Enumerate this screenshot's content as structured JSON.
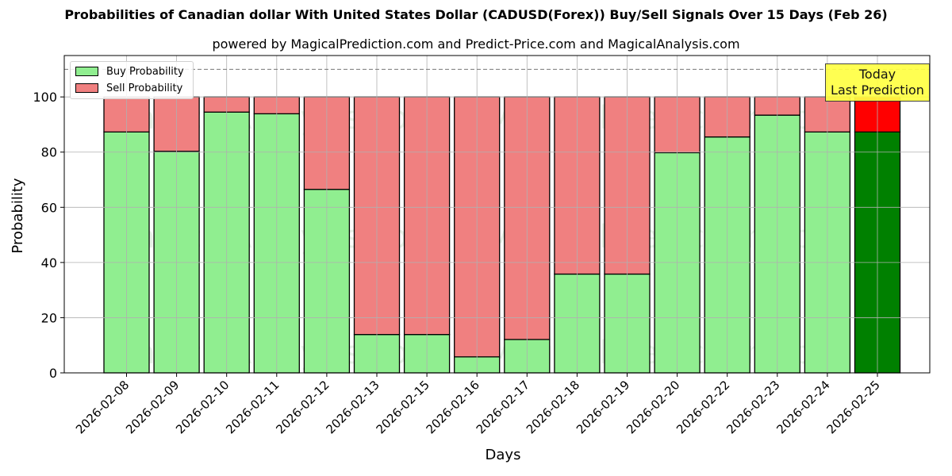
{
  "header": {
    "title": "Probabilities of Canadian dollar With United States Dollar (CADUSD(Forex)) Buy/Sell Signals Over 15 Days (Feb 26)",
    "subtitle": "powered by MagicalPrediction.com and Predict-Price.com and MagicalAnalysis.com"
  },
  "legend": {
    "buy_label": "Buy Probability",
    "sell_label": "Sell Probability"
  },
  "annotation": {
    "line1": "Today",
    "line2": "Last Prediction"
  },
  "watermarks": [
    "MagicalAnalysis.com",
    "MagicalPrediction.com"
  ],
  "colors": {
    "buy": "#90ee90",
    "sell": "#f08080",
    "buy_today": "#008000",
    "sell_today": "#ff0000",
    "annotation_bg": "#ffff44",
    "grid": "#b0b0b0"
  },
  "chart_data": {
    "type": "bar",
    "stacked": true,
    "title": "Probabilities of Canadian dollar With United States Dollar (CADUSD(Forex)) Buy/Sell Signals Over 15 Days (Feb 26)",
    "subtitle": "powered by MagicalPrediction.com and Predict-Price.com and MagicalAnalysis.com",
    "xlabel": "Days",
    "ylabel": "Probability",
    "ylim": [
      0,
      115
    ],
    "yticks": [
      0,
      20,
      40,
      60,
      80,
      100
    ],
    "grid": true,
    "legend_position": "upper left",
    "reference_line": {
      "y": 110,
      "style": "dashed"
    },
    "categories": [
      "2026-02-08",
      "2026-02-09",
      "2026-02-10",
      "2026-02-11",
      "2026-02-12",
      "2026-02-13",
      "2026-02-15",
      "2026-02-16",
      "2026-02-17",
      "2026-02-18",
      "2026-02-19",
      "2026-02-20",
      "2026-02-22",
      "2026-02-23",
      "2026-02-24",
      "2026-02-25"
    ],
    "series": [
      {
        "name": "Buy Probability",
        "values": [
          87.3,
          80.3,
          94.5,
          93.9,
          66.5,
          13.9,
          13.9,
          5.8,
          12.1,
          35.8,
          35.8,
          79.8,
          85.5,
          93.4,
          87.3,
          87.3
        ]
      },
      {
        "name": "Sell Probability",
        "values": [
          12.7,
          19.7,
          5.5,
          6.1,
          33.5,
          86.1,
          86.1,
          94.2,
          87.9,
          64.2,
          64.2,
          20.2,
          14.5,
          6.6,
          12.7,
          12.7
        ]
      }
    ],
    "highlight_last": {
      "label": "Today\nLast Prediction"
    }
  }
}
